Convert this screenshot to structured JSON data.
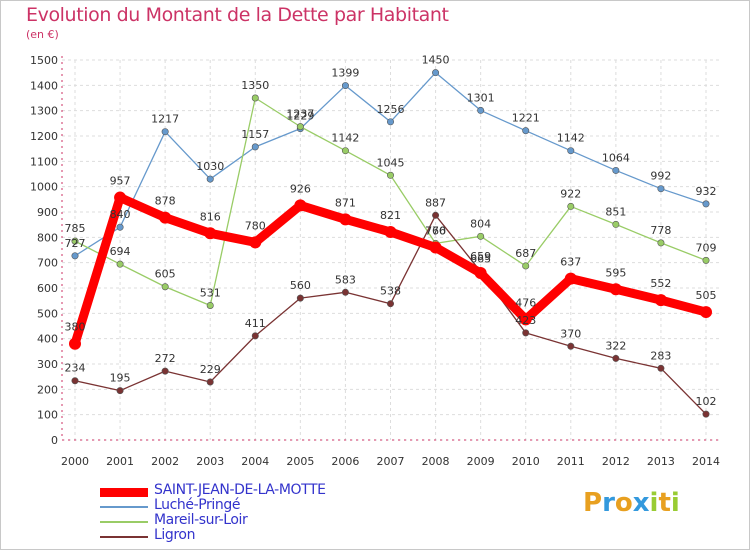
{
  "header": {
    "title": "Evolution du Montant de la Dette par Habitant",
    "subtitle": "(en €)"
  },
  "logo": {
    "letters": [
      "P",
      "r",
      "o",
      "x",
      "i",
      "t",
      "i"
    ],
    "colors": [
      "#e8a020",
      "#3399dd",
      "#e8a020",
      "#3399dd",
      "#99cc33",
      "#e8a020",
      "#99cc33"
    ]
  },
  "chart_data": {
    "type": "line",
    "categories": [
      "2000",
      "2001",
      "2002",
      "2003",
      "2004",
      "2005",
      "2006",
      "2007",
      "2008",
      "2009",
      "2010",
      "2011",
      "2012",
      "2013",
      "2014"
    ],
    "ylim": [
      0,
      1500
    ],
    "yticks": [
      0,
      100,
      200,
      300,
      400,
      500,
      600,
      700,
      800,
      900,
      1000,
      1100,
      1200,
      1300,
      1400,
      1500
    ],
    "grid": true,
    "legend_position": "bottom-left",
    "series": [
      {
        "name": "Luché-Pringé",
        "color": "#6699cc",
        "values": [
          727,
          840,
          1217,
          1030,
          1157,
          1229,
          1399,
          1256,
          1450,
          1301,
          1221,
          1142,
          1064,
          992,
          932
        ],
        "labels": [
          "727",
          "840",
          "1217",
          "1030",
          "1157",
          "1229",
          "1399",
          "1256",
          "1450",
          "1301",
          "1221",
          "1142",
          "1064",
          "992",
          "932"
        ]
      },
      {
        "name": "Mareil-sur-Loir",
        "color": "#99cc66",
        "values": [
          785,
          694,
          605,
          531,
          1350,
          1237,
          1142,
          1045,
          776,
          804,
          687,
          922,
          851,
          778,
          709
        ],
        "labels": [
          "785",
          "694",
          "605",
          "531",
          "1350",
          "1237",
          "1142",
          "1045",
          "776",
          "804",
          "687",
          "922",
          "851",
          "778",
          "709"
        ]
      },
      {
        "name": "Ligron",
        "color": "#7a3333",
        "values": [
          234,
          195,
          272,
          229,
          411,
          560,
          583,
          538,
          887,
          665,
          423,
          370,
          322,
          283,
          102
        ],
        "labels": [
          "234",
          "195",
          "272",
          "229",
          "411",
          "560",
          "583",
          "538",
          "887",
          "665",
          "423",
          "370",
          "322",
          "283",
          "102"
        ]
      },
      {
        "name": "SAINT-JEAN-DE-LA-MOTTE",
        "color": "#ff0000",
        "values": [
          380,
          957,
          878,
          816,
          780,
          926,
          871,
          821,
          760,
          659,
          476,
          637,
          595,
          552,
          505
        ],
        "labels": [
          "380",
          "957",
          "878",
          "816",
          "780",
          "926",
          "871",
          "821",
          "760",
          "659",
          "476",
          "637",
          "595",
          "552",
          "505"
        ]
      }
    ],
    "legend_order": [
      "SAINT-JEAN-DE-LA-MOTTE",
      "Luché-Pringé",
      "Mareil-sur-Loir",
      "Ligron"
    ]
  }
}
